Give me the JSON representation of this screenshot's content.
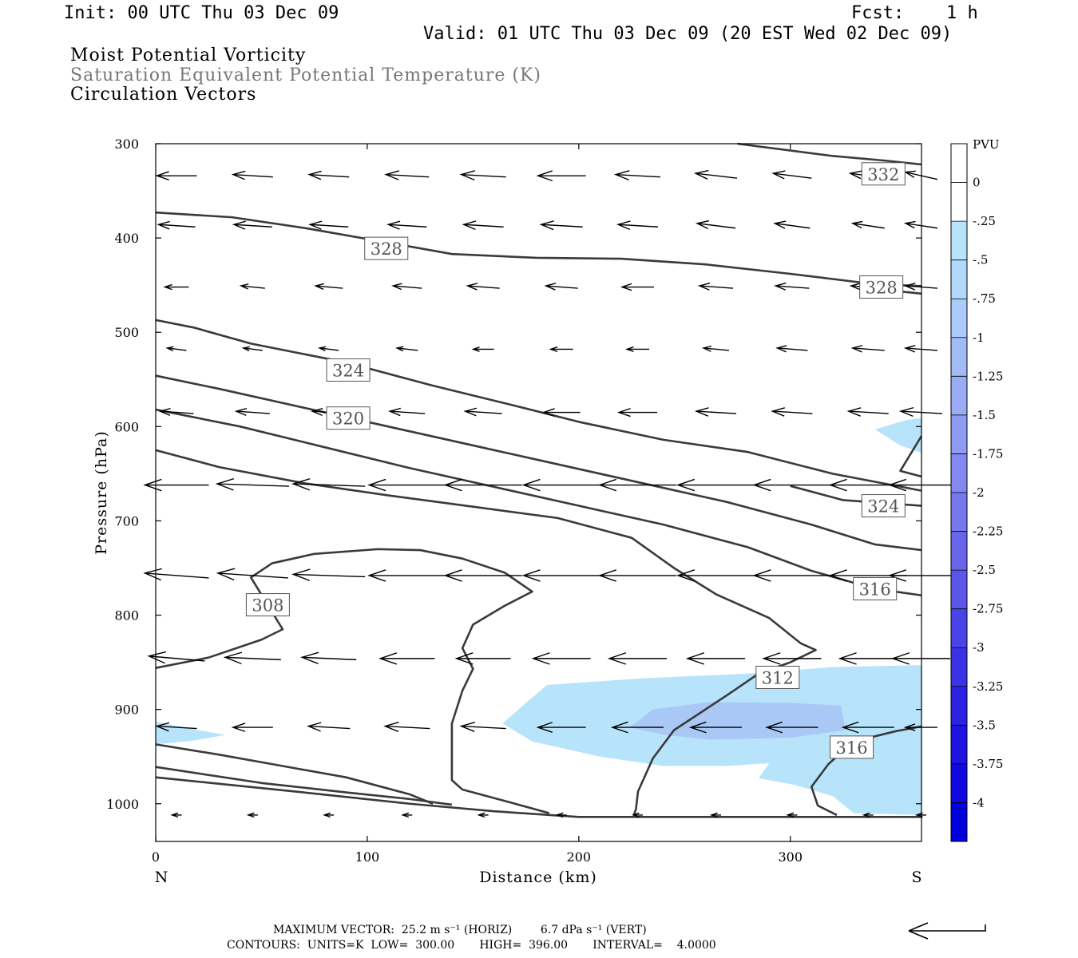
{
  "header": {
    "init": "Init: 00 UTC Thu 03 Dec 09",
    "fcst_label": "Fcst:",
    "fcst_value": "1 h",
    "valid": "Valid: 01 UTC Thu 03 Dec 09 (20 EST Wed 02 Dec 09)"
  },
  "titles": {
    "line1": "Moist Potential Vorticity",
    "line2": "Saturation Equivalent Potential Temperature (K)",
    "line3": "Circulation Vectors"
  },
  "footer": {
    "max_vector": "MAXIMUM VECTOR:  25.2 m s⁻¹ (HORIZ)        6.7 dPa s⁻¹ (VERT)",
    "contours": "CONTOURS:  UNITS=K  LOW=  300.00       HIGH=  396.00       INTERVAL=    4.0000"
  },
  "colors": {
    "contour": "#3a3a3a",
    "pv_fill_light": "#b8e4fb",
    "pv_fill_mid": "#a9c8f6"
  },
  "chart_data": {
    "type": "cross-section",
    "xlabel": "Distance (km)",
    "ylabel": "Pressure (hPa)",
    "xlim": [
      0,
      362
    ],
    "ylim": [
      1040,
      300
    ],
    "x_ticks": [
      0,
      100,
      200,
      300
    ],
    "y_ticks": [
      300,
      400,
      500,
      600,
      700,
      800,
      900,
      1000
    ],
    "x_end_labels": {
      "left": "N",
      "right": "S"
    },
    "colorbar": {
      "unit": "PVU",
      "labels": [
        "0",
        "-.25",
        "-.5",
        "-.75",
        "-1",
        "-1.25",
        "-1.5",
        "-1.75",
        "-2",
        "-2.25",
        "-2.5",
        "-2.75",
        "-3",
        "-3.25",
        "-3.5",
        "-3.75",
        "-4"
      ],
      "colors": [
        "#ffffff",
        "#ffffff",
        "#b8e4fb",
        "#b2d9fa",
        "#abcbf8",
        "#a2bbf6",
        "#98abf4",
        "#8e9bf2",
        "#8289f0",
        "#7878ee",
        "#6a66ec",
        "#5b55ea",
        "#4a44e8",
        "#3a33e6",
        "#2b22e4",
        "#1e14e2",
        "#0f08e0",
        "#0000dd"
      ]
    },
    "theta_contours": [
      {
        "label": "332",
        "points": [
          [
            275,
            300
          ],
          [
            320,
            313
          ],
          [
            345,
            318
          ],
          [
            362,
            322
          ]
        ],
        "label_at": [
          344,
          332
        ]
      },
      {
        "label": "328",
        "points": [
          [
            0,
            373
          ],
          [
            36,
            378
          ],
          [
            72,
            390
          ],
          [
            110,
            405
          ],
          [
            140,
            417
          ],
          [
            180,
            421
          ],
          [
            220,
            422
          ],
          [
            260,
            428
          ],
          [
            300,
            438
          ],
          [
            340,
            449
          ],
          [
            362,
            451
          ]
        ],
        "label_at": [
          109,
          411
        ]
      },
      {
        "label": "328",
        "points": [
          [
            340,
            454
          ],
          [
            362,
            459
          ]
        ],
        "label_at": [
          343,
          452
        ]
      },
      {
        "label": "324",
        "points": [
          [
            0,
            487
          ],
          [
            18,
            495
          ],
          [
            45,
            512
          ],
          [
            90,
            532
          ],
          [
            130,
            556
          ],
          [
            170,
            578
          ],
          [
            200,
            595
          ],
          [
            240,
            614
          ],
          [
            280,
            627
          ],
          [
            320,
            650
          ],
          [
            362,
            668
          ]
        ],
        "label_at": [
          91,
          540
        ]
      },
      {
        "label": "324",
        "points": [
          [
            300,
            663
          ],
          [
            325,
            678
          ],
          [
            362,
            684
          ]
        ],
        "label_at": [
          344,
          684
        ]
      },
      {
        "label": "320",
        "points": [
          [
            0,
            546
          ],
          [
            30,
            560
          ],
          [
            70,
            580
          ],
          [
            110,
            600
          ],
          [
            150,
            620
          ],
          [
            190,
            640
          ],
          [
            230,
            660
          ],
          [
            270,
            680
          ],
          [
            310,
            704
          ],
          [
            340,
            725
          ],
          [
            362,
            731
          ]
        ],
        "label_at": [
          91,
          591
        ]
      },
      {
        "label": "316",
        "points": [
          [
            0,
            582
          ],
          [
            40,
            600
          ],
          [
            80,
            622
          ],
          [
            120,
            644
          ],
          [
            160,
            664
          ],
          [
            200,
            684
          ],
          [
            240,
            704
          ],
          [
            280,
            728
          ],
          [
            310,
            753
          ],
          [
            340,
            772
          ],
          [
            362,
            779
          ]
        ],
        "label_at": [
          340,
          772
        ]
      },
      {
        "label": "312",
        "points": [
          [
            0,
            625
          ],
          [
            30,
            643
          ],
          [
            70,
            660
          ],
          [
            110,
            673
          ],
          [
            150,
            685
          ],
          [
            190,
            697
          ],
          [
            225,
            718
          ],
          [
            245,
            750
          ],
          [
            265,
            778
          ],
          [
            290,
            803
          ],
          [
            305,
            830
          ],
          [
            312,
            837
          ],
          [
            300,
            850
          ],
          [
            285,
            862
          ],
          [
            270,
            885
          ],
          [
            245,
            922
          ],
          [
            235,
            952
          ],
          [
            228,
            987
          ],
          [
            227,
            1006
          ],
          [
            226,
            1012
          ]
        ],
        "label_at": [
          294,
          866
        ]
      },
      {
        "label": "308",
        "points": [
          [
            0,
            856
          ],
          [
            25,
            845
          ],
          [
            50,
            826
          ],
          [
            60,
            815
          ],
          [
            45,
            760
          ],
          [
            55,
            745
          ],
          [
            75,
            735
          ],
          [
            105,
            730
          ],
          [
            125,
            731
          ],
          [
            145,
            740
          ],
          [
            165,
            755
          ],
          [
            178,
            775
          ],
          [
            165,
            790
          ],
          [
            150,
            810
          ],
          [
            145,
            835
          ],
          [
            150,
            857
          ],
          [
            145,
            880
          ],
          [
            140,
            915
          ],
          [
            140,
            975
          ],
          [
            145,
            985
          ],
          [
            165,
            997
          ],
          [
            186,
            1010
          ]
        ],
        "label_at": [
          53,
          789
        ]
      },
      {
        "label": "316",
        "points": [
          [
            362,
            918
          ],
          [
            350,
            923
          ],
          [
            330,
            934
          ],
          [
            318,
            958
          ],
          [
            310,
            982
          ],
          [
            313,
            1002
          ],
          [
            322,
            1012
          ]
        ],
        "label_at": [
          329,
          940
        ]
      },
      {
        "label": "",
        "points": [
          [
            0,
            937
          ],
          [
            30,
            948
          ],
          [
            60,
            960
          ],
          [
            90,
            972
          ],
          [
            120,
            990
          ],
          [
            131,
            1000
          ]
        ],
        "label_at": null
      },
      {
        "label": "",
        "points": [
          [
            0,
            961
          ],
          [
            50,
            978
          ],
          [
            90,
            988
          ],
          [
            120,
            995
          ],
          [
            140,
            1001
          ]
        ],
        "label_at": null
      },
      {
        "label": "",
        "points": [
          [
            0,
            972
          ],
          [
            70,
            988
          ],
          [
            120,
            1000
          ],
          [
            160,
            1008
          ],
          [
            200,
            1014
          ],
          [
            362,
            1014
          ]
        ],
        "label_at": null
      },
      {
        "label": "",
        "points": [
          [
            362,
            610
          ],
          [
            352,
            647
          ],
          [
            362,
            653
          ]
        ],
        "label_at": null
      }
    ],
    "pv_regions": [
      {
        "level": -0.25,
        "points": [
          [
            175,
            893
          ],
          [
            185,
            874
          ],
          [
            230,
            867
          ],
          [
            280,
            862
          ],
          [
            320,
            855
          ],
          [
            362,
            853
          ],
          [
            362,
            1012
          ],
          [
            330,
            1010
          ],
          [
            320,
            992
          ],
          [
            302,
            980
          ],
          [
            285,
            973
          ],
          [
            290,
            957
          ],
          [
            270,
            960
          ],
          [
            240,
            960
          ],
          [
            210,
            950
          ],
          [
            178,
            934
          ],
          [
            164,
            915
          ]
        ]
      },
      {
        "level": -0.25,
        "points": [
          [
            0,
            913
          ],
          [
            20,
            922
          ],
          [
            33,
            927
          ],
          [
            18,
            933
          ],
          [
            0,
            937
          ]
        ]
      },
      {
        "level": -0.25,
        "points": [
          [
            340,
            603
          ],
          [
            355,
            593
          ],
          [
            362,
            591
          ],
          [
            362,
            628
          ],
          [
            352,
            620
          ]
        ]
      },
      {
        "level": -0.5,
        "points": [
          [
            224,
            919
          ],
          [
            235,
            900
          ],
          [
            262,
            892
          ],
          [
            300,
            893
          ],
          [
            324,
            896
          ],
          [
            326,
            922
          ],
          [
            300,
            930
          ],
          [
            262,
            932
          ],
          [
            240,
            927
          ]
        ]
      }
    ],
    "vectors_x": [
      10,
      46,
      82,
      119,
      155,
      192,
      228,
      265,
      301,
      337,
      362
    ],
    "vectors": [
      {
        "p": 334,
        "u": [
          -25,
          -25,
          -25,
          -27,
          -28,
          -30,
          -28,
          -26,
          -24,
          -23,
          -20
        ],
        "w": [
          0,
          -1,
          -1,
          -1,
          -1,
          0,
          -1,
          -2,
          -2,
          -2,
          -3
        ]
      },
      {
        "p": 387,
        "u": [
          -23,
          -24,
          -24,
          -24,
          -25,
          -26,
          -25,
          -24,
          -22,
          -20,
          -20
        ],
        "w": [
          -1,
          -1,
          -1,
          -1,
          -1,
          -1,
          -1,
          -2,
          -2,
          -2,
          -2
        ]
      },
      {
        "p": 452,
        "u": [
          -15,
          -15,
          -17,
          -18,
          -20,
          -20,
          -20,
          -21,
          -21,
          -22,
          -20
        ],
        "w": [
          0,
          -1,
          -1,
          -1,
          -1,
          -1,
          0,
          -1,
          -1,
          -1,
          -1
        ]
      },
      {
        "p": 518,
        "u": [
          -12,
          -12,
          -12,
          -13,
          -13,
          -14,
          -14,
          -16,
          -19,
          -20,
          -20
        ],
        "w": [
          -1,
          -1,
          -1,
          -1,
          0,
          0,
          0,
          -1,
          -1,
          -1,
          -1
        ]
      },
      {
        "p": 585,
        "u": [
          -21,
          -21,
          -21,
          -22,
          -23,
          -23,
          -24,
          -25,
          -25,
          -25,
          -26
        ],
        "w": [
          -1,
          -1,
          -1,
          -1,
          -1,
          0,
          0,
          -1,
          -1,
          -1,
          -1
        ]
      },
      {
        "p": 662,
        "u": [
          -40,
          -45,
          -45,
          -48,
          -48,
          -48,
          -48,
          -48,
          -48,
          -48,
          -40
        ],
        "w": [
          0,
          -1,
          -1,
          0,
          0,
          0,
          0,
          0,
          0,
          0,
          0
        ]
      },
      {
        "p": 758,
        "u": [
          -40,
          -44,
          -45,
          -48,
          -48,
          -48,
          -48,
          -48,
          -48,
          -48,
          -40
        ],
        "w": [
          -2,
          -2,
          -1,
          0,
          0,
          0,
          0,
          0,
          0,
          0,
          0
        ]
      },
      {
        "p": 846,
        "u": [
          -35,
          -35,
          -34,
          -34,
          -34,
          -36,
          -36,
          -36,
          -36,
          -36,
          -36
        ],
        "w": [
          -2,
          -1,
          -1,
          0,
          0,
          0,
          0,
          0,
          0,
          0,
          0
        ]
      },
      {
        "p": 919,
        "u": [
          -25,
          -25,
          -26,
          -28,
          -28,
          -30,
          -32,
          -32,
          -32,
          -32,
          -20
        ],
        "w": [
          -1,
          0,
          -1,
          -1,
          -1,
          0,
          0,
          0,
          0,
          0,
          0
        ]
      },
      {
        "p": 1012,
        "u": [
          -6,
          -6,
          -6,
          -6,
          -6,
          -6,
          -6,
          -6,
          -6,
          -6,
          -6
        ],
        "w": [
          0,
          0,
          0,
          0,
          0,
          0,
          0,
          0,
          0,
          0,
          0
        ]
      }
    ]
  }
}
